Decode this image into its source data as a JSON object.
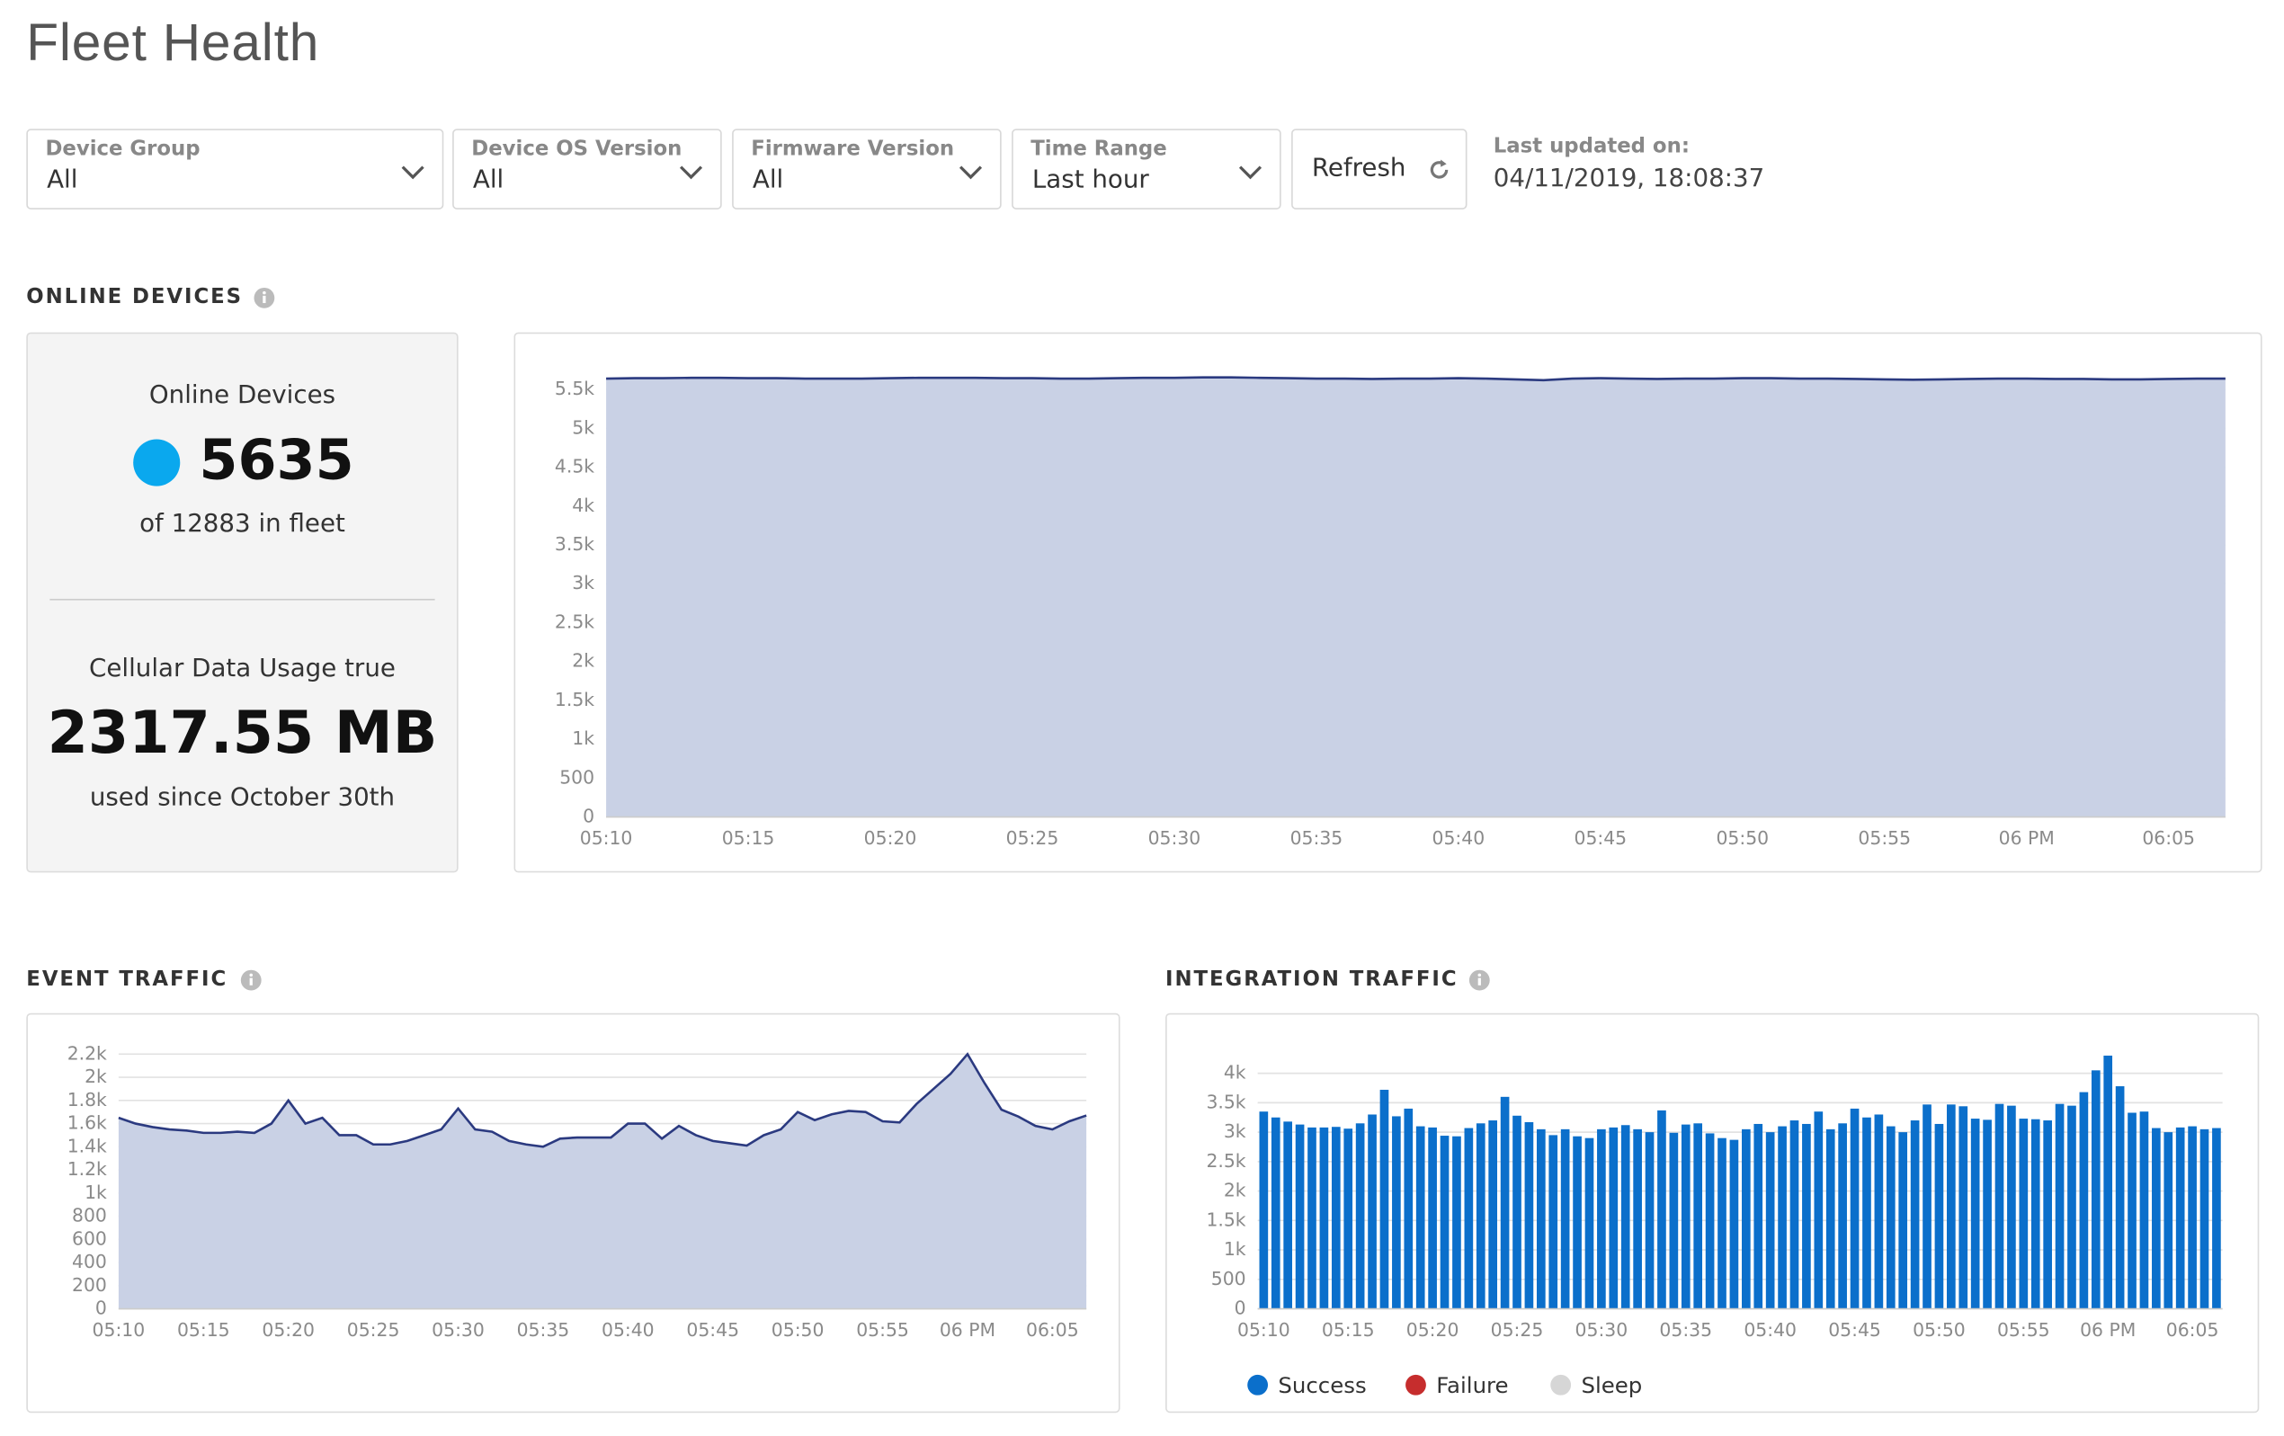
{
  "header": {
    "title": "Fleet Health"
  },
  "filters": [
    {
      "label": "Device Group",
      "value": "All"
    },
    {
      "label": "Device OS Version",
      "value": "All"
    },
    {
      "label": "Firmware Version",
      "value": "All"
    },
    {
      "label": "Time Range",
      "value": "Last hour"
    }
  ],
  "refresh": "Refresh",
  "last_updated": {
    "label": "Last updated on:",
    "value": "04/11/2019, 18:08:37"
  },
  "sections": {
    "online": "ONLINE DEVICES",
    "event": "EVENT TRAFFIC",
    "integration": "INTEGRATION TRAFFIC"
  },
  "summary": {
    "online_label": "Online Devices",
    "online_value": "5635",
    "fleet": "of 12883 in fleet",
    "usage_label": "Cellular Data Usage true",
    "usage_value": "2317.55 MB",
    "usage_since": "used since October 30th"
  },
  "chart_data": [
    {
      "type": "area",
      "categories": [
        "05:10",
        null,
        null,
        null,
        null,
        "05:15",
        null,
        null,
        null,
        null,
        "05:20",
        null,
        null,
        null,
        null,
        "05:25",
        null,
        null,
        null,
        null,
        "05:30",
        null,
        null,
        null,
        null,
        "05:35",
        null,
        null,
        null,
        null,
        "05:40",
        null,
        null,
        null,
        null,
        "05:45",
        null,
        null,
        null,
        null,
        "05:50",
        null,
        null,
        null,
        null,
        "05:55",
        null,
        null,
        null,
        null,
        "06 PM",
        null,
        null,
        null,
        null,
        "06:05",
        null,
        null
      ],
      "series": [
        {
          "color": "#2b3a80",
          "fill": "#c9d1e5",
          "values": [
            5640,
            5645,
            5645,
            5650,
            5650,
            5645,
            5645,
            5640,
            5640,
            5640,
            5645,
            5650,
            5650,
            5650,
            5645,
            5645,
            5640,
            5640,
            5645,
            5650,
            5650,
            5655,
            5655,
            5650,
            5645,
            5640,
            5640,
            5635,
            5640,
            5640,
            5645,
            5640,
            5630,
            5620,
            5640,
            5645,
            5640,
            5635,
            5640,
            5640,
            5645,
            5645,
            5640,
            5640,
            5635,
            5630,
            5625,
            5630,
            5635,
            5640,
            5640,
            5635,
            5635,
            5630,
            5630,
            5635,
            5640,
            5640
          ]
        }
      ],
      "ylim": [
        0,
        5700
      ],
      "yticks": [
        0,
        500,
        {
          "value": 1000,
          "label": "1k"
        },
        {
          "value": 1500,
          "label": "1.5k"
        },
        {
          "value": 2000,
          "label": "2k"
        },
        {
          "value": 2500,
          "label": "2.5k"
        },
        {
          "value": 3000,
          "label": "3k"
        },
        {
          "value": 3500,
          "label": "3.5k"
        },
        {
          "value": 4000,
          "label": "4k"
        },
        {
          "value": 4500,
          "label": "4.5k"
        },
        {
          "value": 5000,
          "label": "5k"
        },
        {
          "value": 5500,
          "label": "5.5k"
        }
      ],
      "grid": true
    },
    {
      "type": "area",
      "categories": [
        "05:10",
        null,
        null,
        null,
        null,
        "05:15",
        null,
        null,
        null,
        null,
        "05:20",
        null,
        null,
        null,
        null,
        "05:25",
        null,
        null,
        null,
        null,
        "05:30",
        null,
        null,
        null,
        null,
        "05:35",
        null,
        null,
        null,
        null,
        "05:40",
        null,
        null,
        null,
        null,
        "05:45",
        null,
        null,
        null,
        null,
        "05:50",
        null,
        null,
        null,
        null,
        "05:55",
        null,
        null,
        null,
        null,
        "06 PM",
        null,
        null,
        null,
        null,
        "06:05",
        null,
        null
      ],
      "series": [
        {
          "color": "#2b3a80",
          "fill": "#c9d1e5",
          "values": [
            1650,
            1600,
            1570,
            1550,
            1540,
            1520,
            1520,
            1530,
            1520,
            1600,
            1800,
            1600,
            1650,
            1500,
            1500,
            1420,
            1420,
            1450,
            1500,
            1550,
            1730,
            1550,
            1530,
            1450,
            1420,
            1400,
            1470,
            1480,
            1480,
            1480,
            1600,
            1600,
            1470,
            1580,
            1500,
            1450,
            1430,
            1410,
            1500,
            1550,
            1700,
            1630,
            1680,
            1710,
            1700,
            1620,
            1610,
            1770,
            1900,
            2030,
            2200,
            1950,
            1720,
            1660,
            1580,
            1550,
            1620,
            1670
          ]
        }
      ],
      "ylim": [
        0,
        2200
      ],
      "yticks": [
        0,
        200,
        400,
        600,
        800,
        {
          "value": 1000,
          "label": "1k"
        },
        {
          "value": 1200,
          "label": "1.2k"
        },
        {
          "value": 1400,
          "label": "1.4k"
        },
        {
          "value": 1600,
          "label": "1.6k"
        },
        {
          "value": 1800,
          "label": "1.8k"
        },
        {
          "value": 2000,
          "label": "2k"
        },
        {
          "value": 2200,
          "label": "2.2k"
        }
      ],
      "grid": true
    },
    {
      "type": "bar",
      "stacked": true,
      "categories": [
        "05:10",
        null,
        null,
        null,
        null,
        null,
        null,
        "05:15",
        null,
        null,
        null,
        null,
        null,
        null,
        "05:20",
        null,
        null,
        null,
        null,
        null,
        null,
        "05:25",
        null,
        null,
        null,
        null,
        null,
        null,
        "05:30",
        null,
        null,
        null,
        null,
        null,
        null,
        "05:35",
        null,
        null,
        null,
        null,
        null,
        null,
        "05:40",
        null,
        null,
        null,
        null,
        null,
        null,
        "05:45",
        null,
        null,
        null,
        null,
        null,
        null,
        "05:50",
        null,
        null,
        null,
        null,
        null,
        null,
        "05:55",
        null,
        null,
        null,
        null,
        null,
        null,
        "06 PM",
        null,
        null,
        null,
        null,
        null,
        null,
        "06:05",
        null,
        null
      ],
      "series": [
        {
          "name": "Success",
          "color": "#0b6fcb",
          "values": [
            3350,
            3250,
            3180,
            3130,
            3080,
            3080,
            3090,
            3060,
            3150,
            3300,
            3720,
            3270,
            3400,
            3100,
            3080,
            2940,
            2930,
            3070,
            3150,
            3200,
            3600,
            3280,
            3170,
            3050,
            2950,
            3050,
            2930,
            2900,
            3050,
            3080,
            3120,
            3050,
            3000,
            3370,
            2990,
            3130,
            3150,
            2980,
            2900,
            2870,
            3050,
            3140,
            3000,
            3100,
            3200,
            3140,
            3350,
            3050,
            3150,
            3400,
            3250,
            3300,
            3100,
            3000,
            3200,
            3470,
            3140,
            3470,
            3440,
            3230,
            3210,
            3480,
            3450,
            3230,
            3220,
            3200,
            3480,
            3450,
            3680,
            4050,
            4300,
            3780,
            3330,
            3350,
            3070,
            3000,
            3080,
            3100,
            3050,
            3070
          ]
        },
        {
          "name": "Failure",
          "color": "#c62d2d",
          "values": [
            0,
            0,
            0,
            0,
            0,
            0,
            0,
            0,
            0,
            0,
            0,
            0,
            0,
            0,
            0,
            0,
            0,
            0,
            0,
            0,
            0,
            0,
            0,
            0,
            0,
            0,
            0,
            0,
            0,
            0,
            0,
            0,
            0,
            0,
            0,
            0,
            0,
            0,
            0,
            0,
            0,
            0,
            0,
            0,
            0,
            0,
            0,
            0,
            0,
            0,
            0,
            0,
            0,
            0,
            0,
            0,
            0,
            0,
            0,
            0,
            0,
            0,
            0,
            0,
            0,
            0,
            0,
            0,
            0,
            0,
            0,
            0,
            0,
            0,
            0,
            0,
            0,
            0,
            0,
            0
          ]
        },
        {
          "name": "Sleep",
          "color": "#d6d6d6",
          "values": [
            0,
            0,
            0,
            0,
            0,
            0,
            0,
            0,
            0,
            0,
            0,
            0,
            0,
            0,
            0,
            0,
            0,
            0,
            0,
            0,
            0,
            0,
            0,
            0,
            0,
            0,
            0,
            0,
            0,
            0,
            0,
            0,
            0,
            0,
            0,
            0,
            0,
            0,
            0,
            0,
            0,
            0,
            0,
            0,
            0,
            0,
            0,
            0,
            0,
            0,
            0,
            0,
            0,
            0,
            0,
            0,
            0,
            0,
            0,
            0,
            0,
            0,
            0,
            0,
            0,
            0,
            0,
            0,
            0,
            0,
            0,
            0,
            0,
            0,
            0,
            0,
            0,
            0,
            0,
            0
          ]
        }
      ],
      "ylim": [
        0,
        4400
      ],
      "yticks": [
        0,
        500,
        {
          "value": 1000,
          "label": "1k"
        },
        {
          "value": 1500,
          "label": "1.5k"
        },
        {
          "value": 2000,
          "label": "2k"
        },
        {
          "value": 2500,
          "label": "2.5k"
        },
        {
          "value": 3000,
          "label": "3k"
        },
        {
          "value": 3500,
          "label": "3.5k"
        },
        {
          "value": 4000,
          "label": "4k"
        }
      ],
      "grid": true,
      "legend": "bottom"
    }
  ]
}
